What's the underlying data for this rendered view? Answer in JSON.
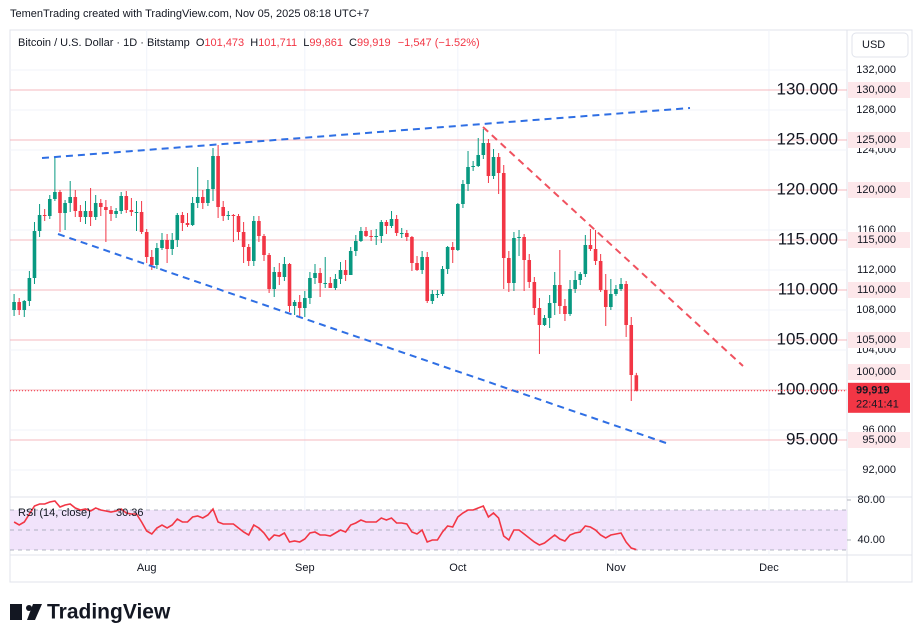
{
  "header": {
    "attribution": "TemenTrading created with TradingView.com, Nov 05, 2025 08:18 UTC+7",
    "logo": "TradingView"
  },
  "chart_data": {
    "type": "candlestick",
    "legend": {
      "symbol": "Bitcoin / U.S. Dollar · 1D · Bitstamp",
      "o": "O",
      "open": "101,473",
      "h": "H",
      "high": "101,711",
      "l": "L",
      "low": "99,861",
      "c": "C",
      "close": "99,919",
      "change": "−1,547 (−1.52%)"
    },
    "currency": "USD",
    "up_color": "#089981",
    "down_color": "#f23645",
    "candles": [
      [
        108000,
        109600,
        107400,
        108800
      ],
      [
        108800,
        109200,
        107500,
        108000
      ],
      [
        108000,
        109000,
        107300,
        108900
      ],
      [
        108900,
        111900,
        108400,
        111200
      ],
      [
        111200,
        116800,
        110600,
        115900
      ],
      [
        115900,
        118600,
        115300,
        117500
      ],
      [
        117500,
        118100,
        116900,
        117400
      ],
      [
        117400,
        119500,
        117100,
        119100
      ],
      [
        119100,
        123200,
        118900,
        119800
      ],
      [
        119800,
        120000,
        115800,
        117700
      ],
      [
        117700,
        119000,
        116000,
        118700
      ],
      [
        118700,
        120900,
        117800,
        119300
      ],
      [
        119300,
        120000,
        117300,
        117900
      ],
      [
        117900,
        118500,
        116800,
        117300
      ],
      [
        117300,
        118900,
        116600,
        117900
      ],
      [
        117900,
        120200,
        116400,
        117300
      ],
      [
        117300,
        119500,
        117000,
        118700
      ],
      [
        118700,
        119100,
        117400,
        118300
      ],
      [
        118300,
        119000,
        114800,
        118000
      ],
      [
        118000,
        118400,
        116900,
        117600
      ],
      [
        117600,
        118200,
        117200,
        117900
      ],
      [
        117900,
        119800,
        117600,
        119400
      ],
      [
        119400,
        119900,
        117700,
        118000
      ],
      [
        118000,
        119200,
        117400,
        117800
      ],
      [
        117800,
        118900,
        115900,
        117800
      ],
      [
        117800,
        118900,
        115600,
        115800
      ],
      [
        115800,
        116100,
        112700,
        113300
      ],
      [
        113300,
        114000,
        112000,
        112500
      ],
      [
        112500,
        114700,
        112100,
        114200
      ],
      [
        114200,
        115700,
        114000,
        115000
      ],
      [
        115000,
        115600,
        112700,
        114100
      ],
      [
        114100,
        115700,
        113500,
        115000
      ],
      [
        115000,
        117700,
        114300,
        117500
      ],
      [
        117500,
        117800,
        115900,
        116700
      ],
      [
        116700,
        117700,
        116300,
        116500
      ],
      [
        116500,
        119300,
        116400,
        118700
      ],
      [
        118700,
        122300,
        118200,
        119300
      ],
      [
        119300,
        120000,
        118100,
        118700
      ],
      [
        118700,
        121000,
        118400,
        120100
      ],
      [
        120100,
        124200,
        118900,
        123400
      ],
      [
        123400,
        124500,
        117200,
        118300
      ],
      [
        118300,
        118900,
        116900,
        117400
      ],
      [
        117400,
        117900,
        117000,
        117500
      ],
      [
        117500,
        117600,
        114800,
        117400
      ],
      [
        117400,
        117600,
        115000,
        115800
      ],
      [
        115800,
        116800,
        112700,
        114300
      ],
      [
        114300,
        114600,
        112400,
        112900
      ],
      [
        112900,
        117400,
        112400,
        116900
      ],
      [
        116900,
        117400,
        114800,
        115400
      ],
      [
        115400,
        115600,
        112900,
        113500
      ],
      [
        113500,
        113700,
        109700,
        110100
      ],
      [
        110100,
        112300,
        109300,
        111800
      ],
      [
        111800,
        112700,
        110500,
        111300
      ],
      [
        111300,
        113300,
        110900,
        112600
      ],
      [
        112600,
        112700,
        107800,
        108400
      ],
      [
        108400,
        109000,
        107500,
        108800
      ],
      [
        108800,
        109500,
        107300,
        108200
      ],
      [
        108200,
        109900,
        107300,
        109200
      ],
      [
        109200,
        111800,
        108600,
        111200
      ],
      [
        111200,
        112600,
        110600,
        111700
      ],
      [
        111700,
        112200,
        109300,
        110700
      ],
      [
        110700,
        113300,
        110200,
        110700
      ],
      [
        110700,
        111300,
        110200,
        110200
      ],
      [
        110200,
        111600,
        110000,
        111100
      ],
      [
        111100,
        112800,
        110600,
        112000
      ],
      [
        112000,
        113000,
        110900,
        111500
      ],
      [
        111500,
        114300,
        111500,
        113900
      ],
      [
        113900,
        115500,
        113400,
        114900
      ],
      [
        114900,
        116300,
        114800,
        115900
      ],
      [
        115900,
        116300,
        115300,
        115400
      ],
      [
        115400,
        116000,
        114900,
        115300
      ],
      [
        115300,
        116100,
        114500,
        115400
      ],
      [
        115400,
        117000,
        114700,
        116800
      ],
      [
        116800,
        117000,
        115600,
        116400
      ],
      [
        116400,
        117900,
        116200,
        117100
      ],
      [
        117100,
        117500,
        115400,
        115700
      ],
      [
        115700,
        116200,
        115200,
        115700
      ],
      [
        115700,
        116000,
        114900,
        115300
      ],
      [
        115300,
        115400,
        111900,
        112700
      ],
      [
        112700,
        113400,
        111900,
        112000
      ],
      [
        112000,
        113900,
        111600,
        113300
      ],
      [
        113300,
        113800,
        108700,
        108900
      ],
      [
        108900,
        110000,
        108600,
        109600
      ],
      [
        109600,
        110000,
        109200,
        109600
      ],
      [
        109600,
        112400,
        109400,
        112100
      ],
      [
        112100,
        114400,
        111600,
        114300
      ],
      [
        114300,
        114800,
        112700,
        114000
      ],
      [
        114000,
        118700,
        113900,
        118600
      ],
      [
        118600,
        121000,
        118200,
        120600
      ],
      [
        120600,
        123900,
        119900,
        122300
      ],
      [
        122300,
        122900,
        121900,
        122400
      ],
      [
        122400,
        125200,
        122300,
        123500
      ],
      [
        123500,
        126100,
        123100,
        124700
      ],
      [
        124700,
        125100,
        120700,
        121400
      ],
      [
        121400,
        124100,
        121100,
        123300
      ],
      [
        123300,
        123700,
        119600,
        121700
      ],
      [
        121700,
        122500,
        110100,
        113200
      ],
      [
        113200,
        113900,
        109800,
        110700
      ],
      [
        110700,
        115800,
        109900,
        115200
      ],
      [
        115200,
        116000,
        113400,
        115300
      ],
      [
        115300,
        115600,
        109900,
        113000
      ],
      [
        113000,
        113600,
        110200,
        110800
      ],
      [
        110800,
        111300,
        107500,
        108200
      ],
      [
        108200,
        109200,
        103600,
        106500
      ],
      [
        106500,
        107500,
        106400,
        107200
      ],
      [
        107200,
        109500,
        106200,
        108700
      ],
      [
        108700,
        111800,
        107500,
        110500
      ],
      [
        110500,
        114000,
        107600,
        108400
      ],
      [
        108400,
        109100,
        106900,
        107600
      ],
      [
        107600,
        111000,
        107400,
        110100
      ],
      [
        110100,
        111900,
        109700,
        111000
      ],
      [
        111000,
        111800,
        110500,
        111600
      ],
      [
        111600,
        115500,
        111300,
        114500
      ],
      [
        114500,
        116100,
        113900,
        114100
      ],
      [
        114100,
        116000,
        112500,
        112900
      ],
      [
        112900,
        113600,
        109800,
        110000
      ],
      [
        110000,
        111600,
        106400,
        108300
      ],
      [
        108300,
        111100,
        108000,
        109600
      ],
      [
        109600,
        110500,
        109400,
        110100
      ],
      [
        110100,
        111200,
        109900,
        110600
      ],
      [
        110600,
        110900,
        105300,
        106500
      ],
      [
        106500,
        107300,
        98900,
        101500
      ],
      [
        101473,
        101711,
        99861,
        99919
      ]
    ],
    "xlim": [
      -0.8,
      163.3
    ],
    "xticks": [
      {
        "value": 26,
        "label": "Aug"
      },
      {
        "value": 57,
        "label": "Sep"
      },
      {
        "value": 87,
        "label": "Oct"
      },
      {
        "value": 118,
        "label": "Nov"
      },
      {
        "value": 148,
        "label": "Dec"
      }
    ],
    "ylim": [
      89300,
      136000
    ],
    "yticks": [
      {
        "value": 92000,
        "label": "92,000"
      },
      {
        "value": 96000,
        "label": "96,000"
      },
      {
        "value": 100000,
        "label": "100,000"
      },
      {
        "value": 104000,
        "label": "104,000"
      },
      {
        "value": 108000,
        "label": "108,000"
      },
      {
        "value": 112000,
        "label": "112,000"
      },
      {
        "value": 116000,
        "label": "116,000"
      },
      {
        "value": 120000,
        "label": "120,000"
      },
      {
        "value": 124000,
        "label": "124,000"
      },
      {
        "value": 128000,
        "label": "128,000"
      },
      {
        "value": 132000,
        "label": "132,000"
      }
    ],
    "grid": true,
    "levels": [
      {
        "value": 130000,
        "label": "130.000",
        "tag": "130,000"
      },
      {
        "value": 125000,
        "label": "125.000",
        "tag": "125,000"
      },
      {
        "value": 120000,
        "label": "120.000",
        "tag": "120,000"
      },
      {
        "value": 115000,
        "label": "115.000",
        "tag": "115,000"
      },
      {
        "value": 110000,
        "label": "110.000",
        "tag": "110,000"
      },
      {
        "value": 105000,
        "label": "105.000",
        "tag": "105,000"
      },
      {
        "value": 100000,
        "label": "100.000",
        "tag": "100,000"
      },
      {
        "value": 95000,
        "label": "95.000",
        "tag": "95,000"
      }
    ],
    "level_color": "#f5b8bf",
    "last_price": {
      "value": 99919,
      "label": "99,919",
      "countdown": "22:41:41",
      "color": "#f23645"
    },
    "rsi": {
      "title": "RSI (14, close)",
      "value_label": "30.36",
      "color": "#f23645",
      "ylim": [
        27,
        83
      ],
      "yticks": [
        {
          "value": 80,
          "label": "80.00"
        },
        {
          "value": 40,
          "label": "40.00"
        }
      ],
      "bands": [
        70,
        50,
        30
      ],
      "values": [
        58,
        55,
        58,
        66,
        74,
        76,
        76,
        78,
        79,
        73,
        75,
        76,
        72,
        70,
        71,
        69,
        72,
        70,
        69,
        68,
        69,
        71,
        67,
        66,
        66,
        58,
        49,
        46,
        52,
        55,
        52,
        55,
        61,
        58,
        58,
        63,
        64,
        62,
        65,
        71,
        58,
        56,
        56,
        56,
        52,
        48,
        45,
        55,
        52,
        47,
        40,
        45,
        44,
        47,
        38,
        39,
        38,
        41,
        47,
        48,
        45,
        45,
        44,
        47,
        50,
        48,
        55,
        57,
        60,
        58,
        58,
        58,
        62,
        60,
        62,
        57,
        57,
        56,
        48,
        46,
        50,
        38,
        40,
        40,
        48,
        54,
        53,
        63,
        67,
        70,
        70,
        72,
        74,
        63,
        67,
        62,
        44,
        40,
        50,
        50,
        46,
        42,
        38,
        35,
        37,
        41,
        45,
        41,
        39,
        45,
        47,
        48,
        54,
        53,
        50,
        45,
        42,
        45,
        46,
        47,
        38,
        32,
        30.36
      ]
    }
  }
}
